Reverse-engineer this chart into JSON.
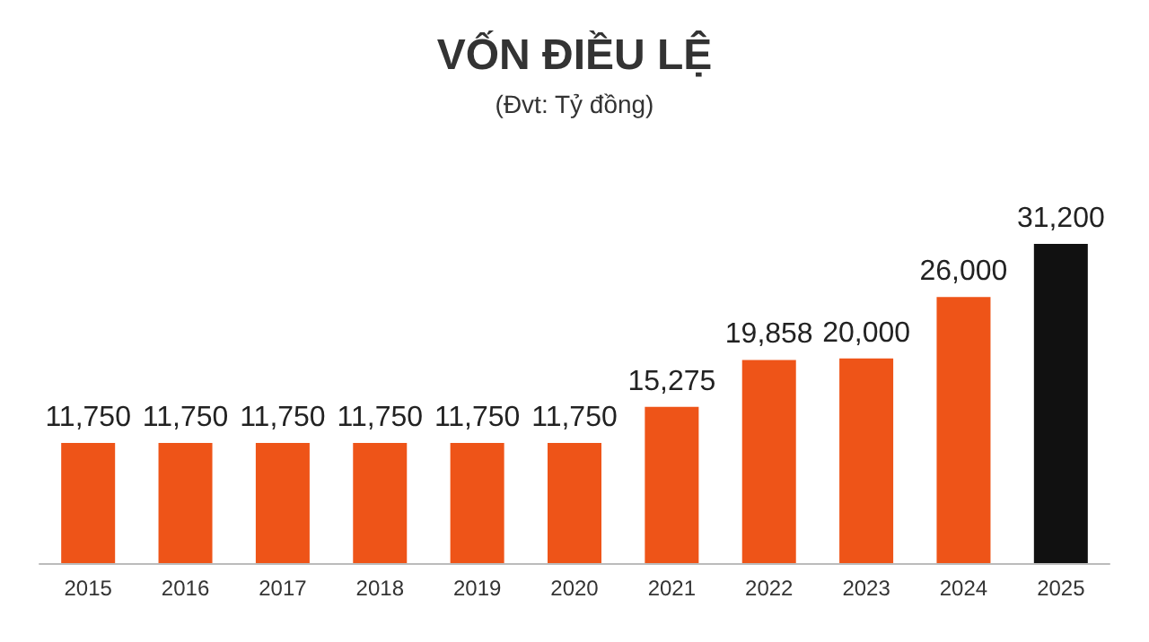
{
  "chart_data": {
    "type": "bar",
    "title": "VỐN ĐIỀU LỆ",
    "subtitle": "(Đvt: Tỷ đồng)",
    "categories": [
      "2015",
      "2016",
      "2017",
      "2018",
      "2019",
      "2020",
      "2021",
      "2022",
      "2023",
      "2024",
      "2025"
    ],
    "values": [
      11750,
      11750,
      11750,
      11750,
      11750,
      11750,
      15275,
      19858,
      20000,
      26000,
      31200
    ],
    "colors": [
      "#ee5418",
      "#ee5418",
      "#ee5418",
      "#ee5418",
      "#ee5418",
      "#ee5418",
      "#ee5418",
      "#ee5418",
      "#ee5418",
      "#ee5418",
      "#111111"
    ],
    "value_labels": [
      "11,750",
      "11,750",
      "11,750",
      "11,750",
      "11,750",
      "11,750",
      "15,275",
      "19,858",
      "20,000",
      "26,000",
      "31,200"
    ]
  }
}
